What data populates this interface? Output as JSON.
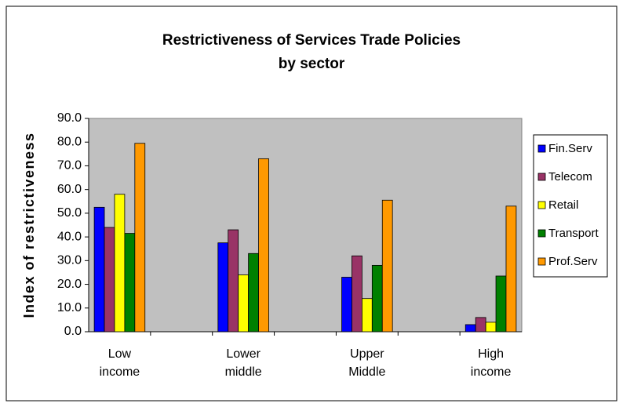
{
  "chart_data": {
    "type": "bar",
    "title": "Restrictiveness of Services Trade Policies",
    "subtitle": "by sector",
    "y_label": "Index of restrictiveness",
    "categories": [
      "Low income",
      null,
      "Lower middle",
      null,
      "Upper Middle",
      null,
      "High income"
    ],
    "series": [
      {
        "name": "Fin.Serv",
        "color": "#0000ff",
        "values": [
          52.5,
          null,
          37.5,
          null,
          23,
          null,
          3
        ]
      },
      {
        "name": "Telecom",
        "color": "#993366",
        "values": [
          44,
          null,
          43,
          null,
          32,
          null,
          6
        ]
      },
      {
        "name": "Retail",
        "color": "#ffff00",
        "values": [
          58,
          null,
          24,
          null,
          14,
          null,
          4
        ]
      },
      {
        "name": "Transport",
        "color": "#008000",
        "values": [
          41.5,
          null,
          33,
          null,
          28,
          null,
          23.5
        ]
      },
      {
        "name": "Prof.Serv",
        "color": "#ff9900",
        "values": [
          79.5,
          null,
          73,
          null,
          55.5,
          null,
          53
        ]
      }
    ],
    "ylim": [
      0,
      90
    ],
    "yticks": [
      {
        "value": 0,
        "label": "0.0"
      },
      {
        "value": 10,
        "label": "10.0"
      },
      {
        "value": 20,
        "label": "20.0"
      },
      {
        "value": 30,
        "label": "30.0"
      },
      {
        "value": 40,
        "label": "40.0"
      },
      {
        "value": 50,
        "label": "50.0"
      },
      {
        "value": 60,
        "label": "60.0"
      },
      {
        "value": 70,
        "label": "70.0"
      },
      {
        "value": 80,
        "label": "80.0"
      },
      {
        "value": 90,
        "label": "90.0"
      }
    ],
    "plot_background": "#c0c0c0",
    "grid": false,
    "legend": "right"
  }
}
